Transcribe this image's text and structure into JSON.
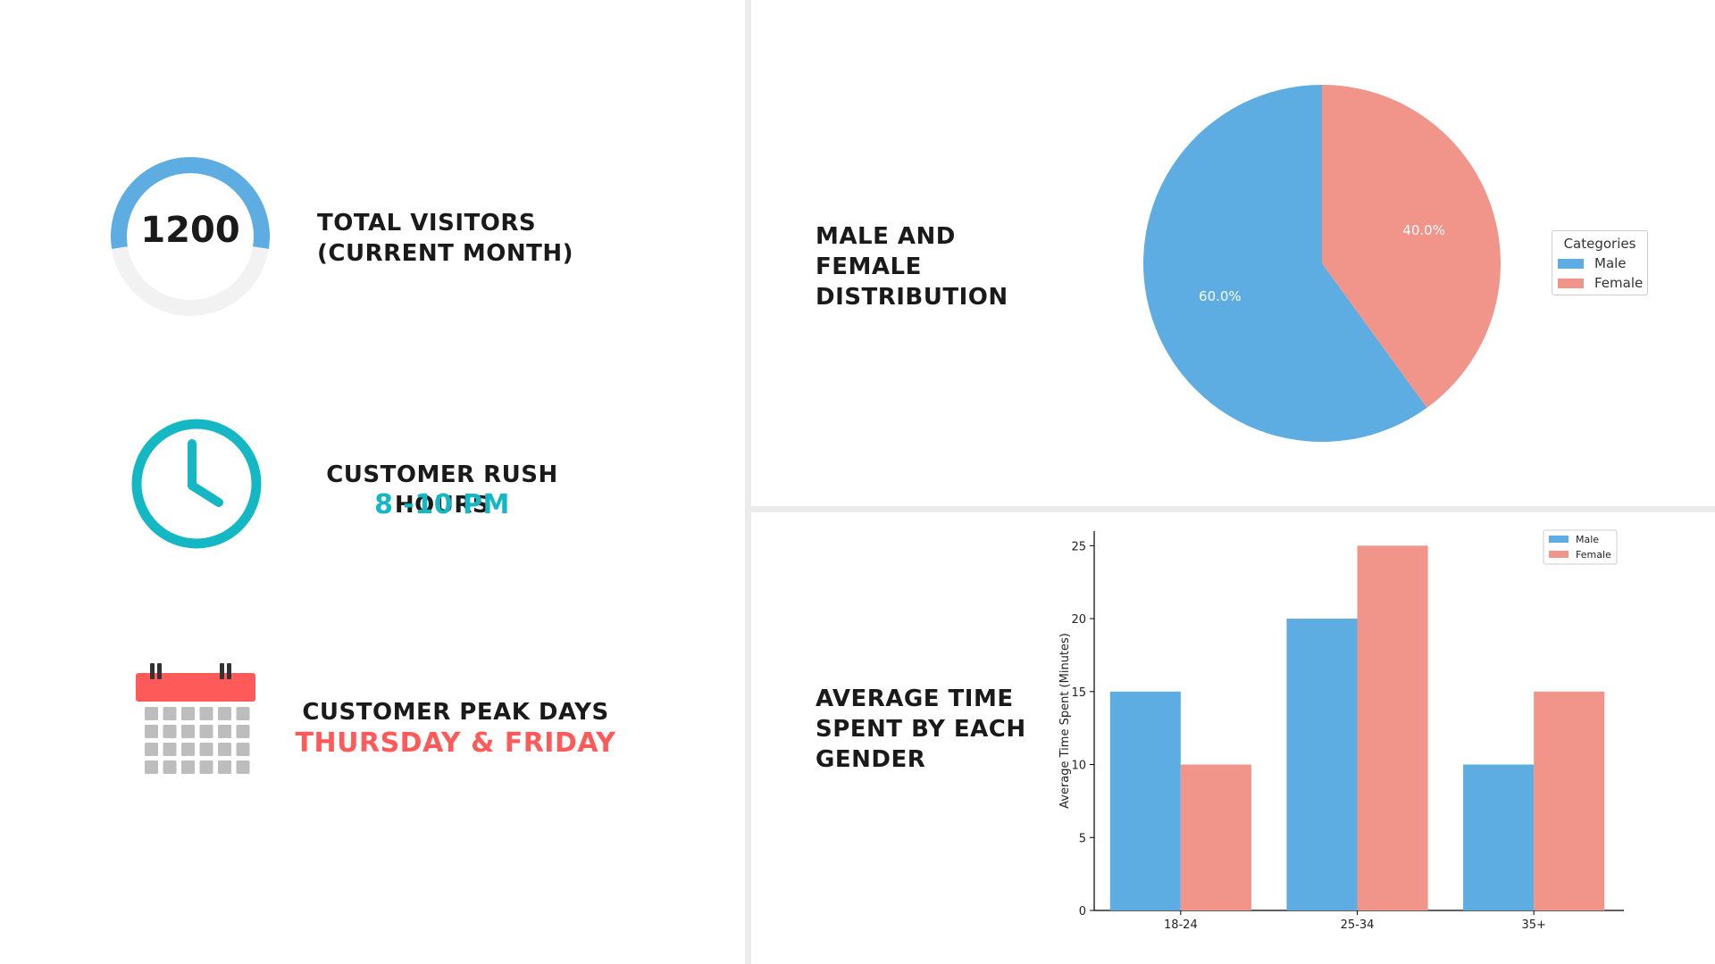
{
  "colors": {
    "male": "#5DADE2",
    "female": "#F1948A",
    "teal": "#14B8C5",
    "red": "#FF5A5A",
    "gauge_track": "#F2F2F2",
    "calendar_header": "#FF5A5A",
    "calendar_cell": "#BDBDBD"
  },
  "kpi_visitors": {
    "value": "1200",
    "label": "TOTAL VISITORS\n(CURRENT MONTH)",
    "gauge_fraction": 0.55
  },
  "kpi_rush": {
    "label": "CUSTOMER RUSH HOURS",
    "value": "8 -10 PM",
    "icon": "clock-icon"
  },
  "kpi_peak": {
    "label": "CUSTOMER PEAK DAYS",
    "value": "THURSDAY & FRIDAY",
    "icon": "calendar-icon"
  },
  "pie_section": {
    "heading": "MALE AND\nFEMALE\nDISTRIBUTION"
  },
  "bar_section": {
    "heading": "AVERAGE TIME\nSPENT BY EACH\nGENDER"
  },
  "chart_data": [
    {
      "type": "pie",
      "slices": [
        {
          "label": "Male",
          "value": 60.0,
          "display": "60.0%"
        },
        {
          "label": "Female",
          "value": 40.0,
          "display": "40.0%"
        }
      ],
      "start_angle_deg": 90,
      "legend": {
        "title": "Categories",
        "entries": [
          "Male",
          "Female"
        ],
        "placement": "right"
      }
    },
    {
      "type": "bar",
      "categories": [
        "18-24",
        "25-34",
        "35+"
      ],
      "series": [
        {
          "name": "Male",
          "values": [
            15,
            20,
            10
          ]
        },
        {
          "name": "Female",
          "values": [
            10,
            25,
            15
          ]
        }
      ],
      "ylabel": "Average Time Spent (Minutes)",
      "ylim": [
        0,
        26
      ],
      "yticks": [
        "0",
        "5",
        "10",
        "15",
        "20",
        "25"
      ],
      "grid": false,
      "legend": {
        "entries": [
          "Male",
          "Female"
        ],
        "placement": "top-right"
      }
    }
  ]
}
